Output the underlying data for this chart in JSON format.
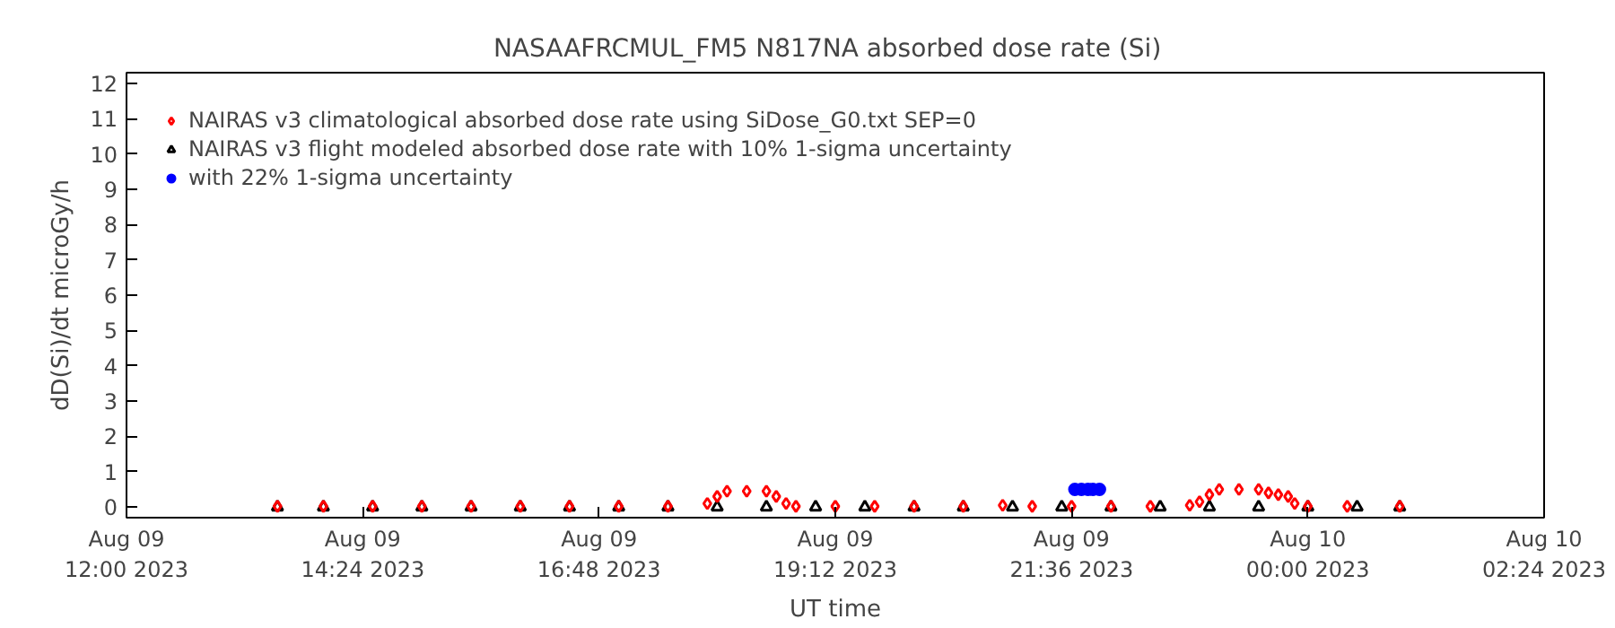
{
  "chart_data": {
    "type": "scatter",
    "title": "NASAAFRCMUL_FM5   N817NA absorbed dose rate (Si)",
    "xlabel": "UT time",
    "ylabel": "dD(Si)/dt microGy/h",
    "xlim": [
      "2023-08-09T12:00",
      "2023-08-10T02:24"
    ],
    "ylim": [
      -0.3,
      12.3
    ],
    "xticks": [
      {
        "value": "2023-08-09T12:00",
        "label": "Aug 09\n12:00 2023"
      },
      {
        "value": "2023-08-09T14:24",
        "label": "Aug 09\n14:24 2023"
      },
      {
        "value": "2023-08-09T16:48",
        "label": "Aug 09\n16:48 2023"
      },
      {
        "value": "2023-08-09T19:12",
        "label": "Aug 09\n19:12 2023"
      },
      {
        "value": "2023-08-09T21:36",
        "label": "Aug 09\n21:36 2023"
      },
      {
        "value": "2023-08-10T00:00",
        "label": "Aug 10\n00:00 2023"
      },
      {
        "value": "2023-08-10T02:24",
        "label": "Aug 10\n02:24 2023"
      }
    ],
    "yticks": [
      0,
      1,
      2,
      3,
      4,
      5,
      6,
      7,
      8,
      9,
      10,
      11,
      12
    ],
    "grid": false,
    "legend": "top left",
    "series": [
      {
        "name": "NAIRAS v3 flight modeled absorbed dose rate with 10% 1-sigma uncertainty",
        "color": "#000000",
        "marker": "triangle",
        "x": [
          "2023-08-09T13:32",
          "2023-08-09T14:00",
          "2023-08-09T14:30",
          "2023-08-09T15:00",
          "2023-08-09T15:30",
          "2023-08-09T16:00",
          "2023-08-09T16:30",
          "2023-08-09T17:00",
          "2023-08-09T17:30",
          "2023-08-09T18:00",
          "2023-08-09T18:30",
          "2023-08-09T19:00",
          "2023-08-09T19:30",
          "2023-08-09T20:00",
          "2023-08-09T20:30",
          "2023-08-09T21:00",
          "2023-08-09T21:30",
          "2023-08-09T22:00",
          "2023-08-09T22:30",
          "2023-08-09T23:00",
          "2023-08-09T23:30",
          "2023-08-10T00:00",
          "2023-08-10T00:30",
          "2023-08-10T00:56"
        ],
        "values": [
          0,
          0,
          0,
          0,
          0,
          0,
          0,
          0,
          0,
          0,
          0,
          0,
          0,
          0,
          0,
          0,
          0,
          0,
          0,
          0,
          0,
          0,
          0,
          0
        ]
      },
      {
        "name": "NAIRAS v3 climatological absorbed dose rate using SiDose_G0.txt SEP=0",
        "color": "#ff0000",
        "marker": "diamond",
        "x": [
          "2023-08-09T13:32",
          "2023-08-09T14:00",
          "2023-08-09T14:30",
          "2023-08-09T15:00",
          "2023-08-09T15:30",
          "2023-08-09T16:00",
          "2023-08-09T16:30",
          "2023-08-09T17:00",
          "2023-08-09T17:30",
          "2023-08-09T17:54",
          "2023-08-09T18:00",
          "2023-08-09T18:06",
          "2023-08-09T18:18",
          "2023-08-09T18:30",
          "2023-08-09T18:36",
          "2023-08-09T18:42",
          "2023-08-09T18:48",
          "2023-08-09T19:12",
          "2023-08-09T19:36",
          "2023-08-09T20:00",
          "2023-08-09T20:30",
          "2023-08-09T20:54",
          "2023-08-09T21:12",
          "2023-08-09T21:36",
          "2023-08-09T22:00",
          "2023-08-09T22:24",
          "2023-08-09T22:48",
          "2023-08-09T22:54",
          "2023-08-09T23:00",
          "2023-08-09T23:06",
          "2023-08-09T23:18",
          "2023-08-09T23:30",
          "2023-08-09T23:36",
          "2023-08-09T23:42",
          "2023-08-09T23:48",
          "2023-08-09T23:52",
          "2023-08-10T00:00",
          "2023-08-10T00:24",
          "2023-08-10T00:56"
        ],
        "values": [
          0.02,
          0.02,
          0.02,
          0.02,
          0.02,
          0.02,
          0.02,
          0.02,
          0.02,
          0.1,
          0.3,
          0.45,
          0.45,
          0.45,
          0.3,
          0.1,
          0.02,
          0.02,
          0.02,
          0.02,
          0.02,
          0.05,
          0.02,
          0.02,
          0.02,
          0.02,
          0.05,
          0.15,
          0.35,
          0.5,
          0.5,
          0.5,
          0.4,
          0.35,
          0.3,
          0.1,
          0.02,
          0.02,
          0.02
        ]
      },
      {
        "name": "with 22% 1-sigma uncertainty",
        "color": "#0000ff",
        "marker": "circle",
        "x": [
          "2023-08-09T21:38",
          "2023-08-09T21:42",
          "2023-08-09T21:46",
          "2023-08-09T21:49",
          "2023-08-09T21:53"
        ],
        "values": [
          0.5,
          0.5,
          0.5,
          0.5,
          0.5
        ]
      }
    ]
  }
}
